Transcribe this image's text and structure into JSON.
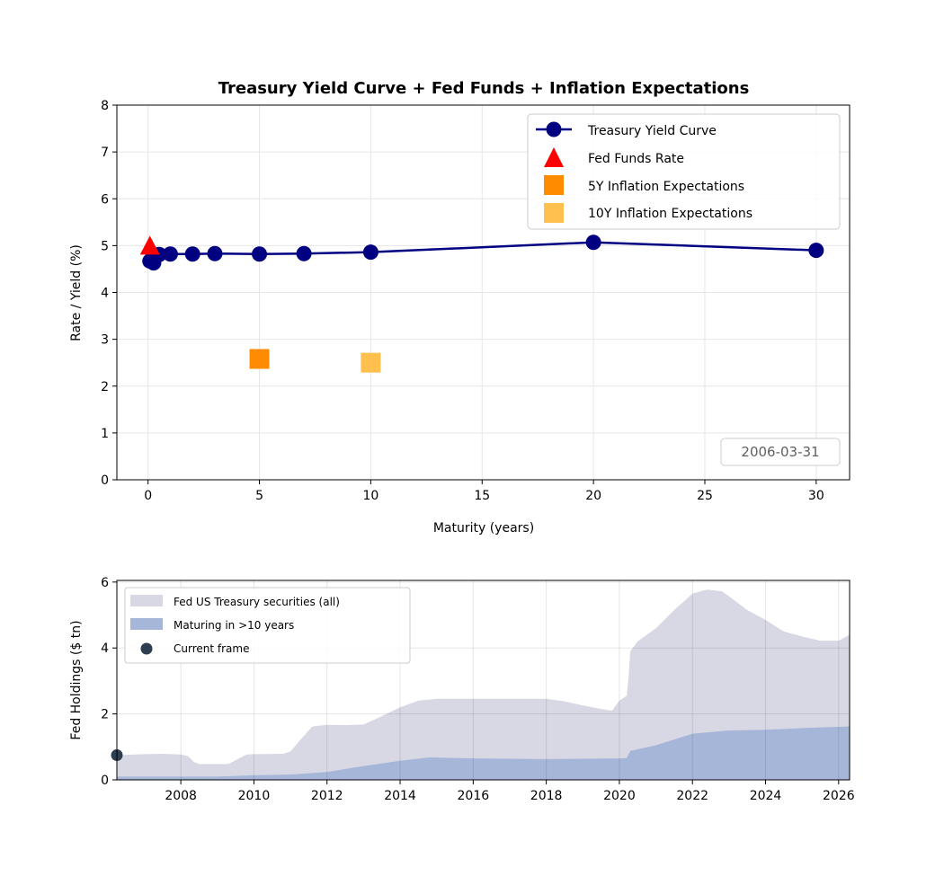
{
  "chart_data": [
    {
      "type": "line",
      "title": "Treasury Yield Curve + Fed Funds + Inflation Expectations",
      "xlabel": "Maturity (years)",
      "ylabel": "Rate / Yield (%)",
      "xlim": [
        -1.4,
        31.5
      ],
      "ylim": [
        0,
        8
      ],
      "xticks": [
        0,
        5,
        10,
        15,
        20,
        25,
        30
      ],
      "yticks": [
        0,
        1,
        2,
        3,
        4,
        5,
        6,
        7,
        8
      ],
      "grid": true,
      "date_label": "2006-03-31",
      "series": [
        {
          "name": "Treasury Yield Curve",
          "color": "#000080",
          "x": [
            0.083,
            0.25,
            0.5,
            1,
            2,
            3,
            5,
            7,
            10,
            20,
            30
          ],
          "y": [
            4.67,
            4.63,
            4.81,
            4.82,
            4.82,
            4.83,
            4.82,
            4.83,
            4.86,
            5.07,
            4.9
          ]
        },
        {
          "name": "Fed Funds Rate",
          "color": "#ff0000",
          "marker": "triangle",
          "x": [
            0.083
          ],
          "y": [
            4.98
          ]
        },
        {
          "name": "5Y Inflation Expectations",
          "color": "#ff8c00",
          "marker": "square",
          "x": [
            5
          ],
          "y": [
            2.58
          ]
        },
        {
          "name": "10Y Inflation Expectations",
          "color": "#ffc04d",
          "marker": "square",
          "x": [
            10
          ],
          "y": [
            2.5
          ]
        }
      ],
      "legend": "top-right"
    },
    {
      "type": "area",
      "xlabel": "",
      "ylabel": "Fed Holdings ($ tn)",
      "xlim": [
        2006.25,
        2026.3
      ],
      "ylim": [
        0,
        6.05
      ],
      "xticks": [
        2008,
        2010,
        2012,
        2014,
        2016,
        2018,
        2020,
        2022,
        2024,
        2026
      ],
      "yticks": [
        0,
        2,
        4,
        6
      ],
      "grid": true,
      "series": [
        {
          "name": "Fed US Treasury securities (all)",
          "color": "#d8d8e5",
          "x": [
            2006.25,
            2007.0,
            2007.5,
            2008.0,
            2008.2,
            2008.35,
            2008.5,
            2009.0,
            2009.3,
            2009.8,
            2010.0,
            2010.8,
            2011.0,
            2011.3,
            2011.6,
            2012.0,
            2012.5,
            2013.0,
            2013.5,
            2014.0,
            2014.5,
            2015.0,
            2016.0,
            2017.0,
            2018.0,
            2018.5,
            2019.0,
            2019.5,
            2019.8,
            2020.0,
            2020.2,
            2020.25,
            2020.3,
            2020.5,
            2021.0,
            2021.5,
            2022.0,
            2022.4,
            2022.8,
            2023.0,
            2023.5,
            2024.0,
            2024.5,
            2025.0,
            2025.5,
            2026.0,
            2026.3
          ],
          "values": [
            0.75,
            0.78,
            0.79,
            0.77,
            0.72,
            0.55,
            0.48,
            0.48,
            0.48,
            0.77,
            0.78,
            0.79,
            0.86,
            1.25,
            1.62,
            1.67,
            1.66,
            1.68,
            1.93,
            2.2,
            2.4,
            2.46,
            2.46,
            2.46,
            2.46,
            2.38,
            2.26,
            2.15,
            2.1,
            2.4,
            2.55,
            3.1,
            3.9,
            4.2,
            4.6,
            5.15,
            5.65,
            5.77,
            5.72,
            5.57,
            5.15,
            4.85,
            4.5,
            4.35,
            4.22,
            4.22,
            4.4
          ]
        },
        {
          "name": "Maturing in >10 years",
          "color": "#a6b6d9",
          "x": [
            2006.25,
            2009.0,
            2010.0,
            2011.0,
            2012.0,
            2013.0,
            2014.0,
            2014.8,
            2016.0,
            2018.0,
            2020.0,
            2020.2,
            2020.3,
            2021.0,
            2022.0,
            2023.0,
            2024.0,
            2025.0,
            2026.3
          ],
          "values": [
            0.1,
            0.1,
            0.14,
            0.16,
            0.24,
            0.42,
            0.58,
            0.68,
            0.65,
            0.63,
            0.65,
            0.66,
            0.88,
            1.05,
            1.4,
            1.5,
            1.52,
            1.57,
            1.62
          ]
        },
        {
          "name": "Current frame",
          "color": "#2c3e50",
          "marker": "circle",
          "x": [
            2006.25
          ],
          "y": [
            0.75
          ]
        }
      ],
      "legend": "top-left"
    }
  ]
}
